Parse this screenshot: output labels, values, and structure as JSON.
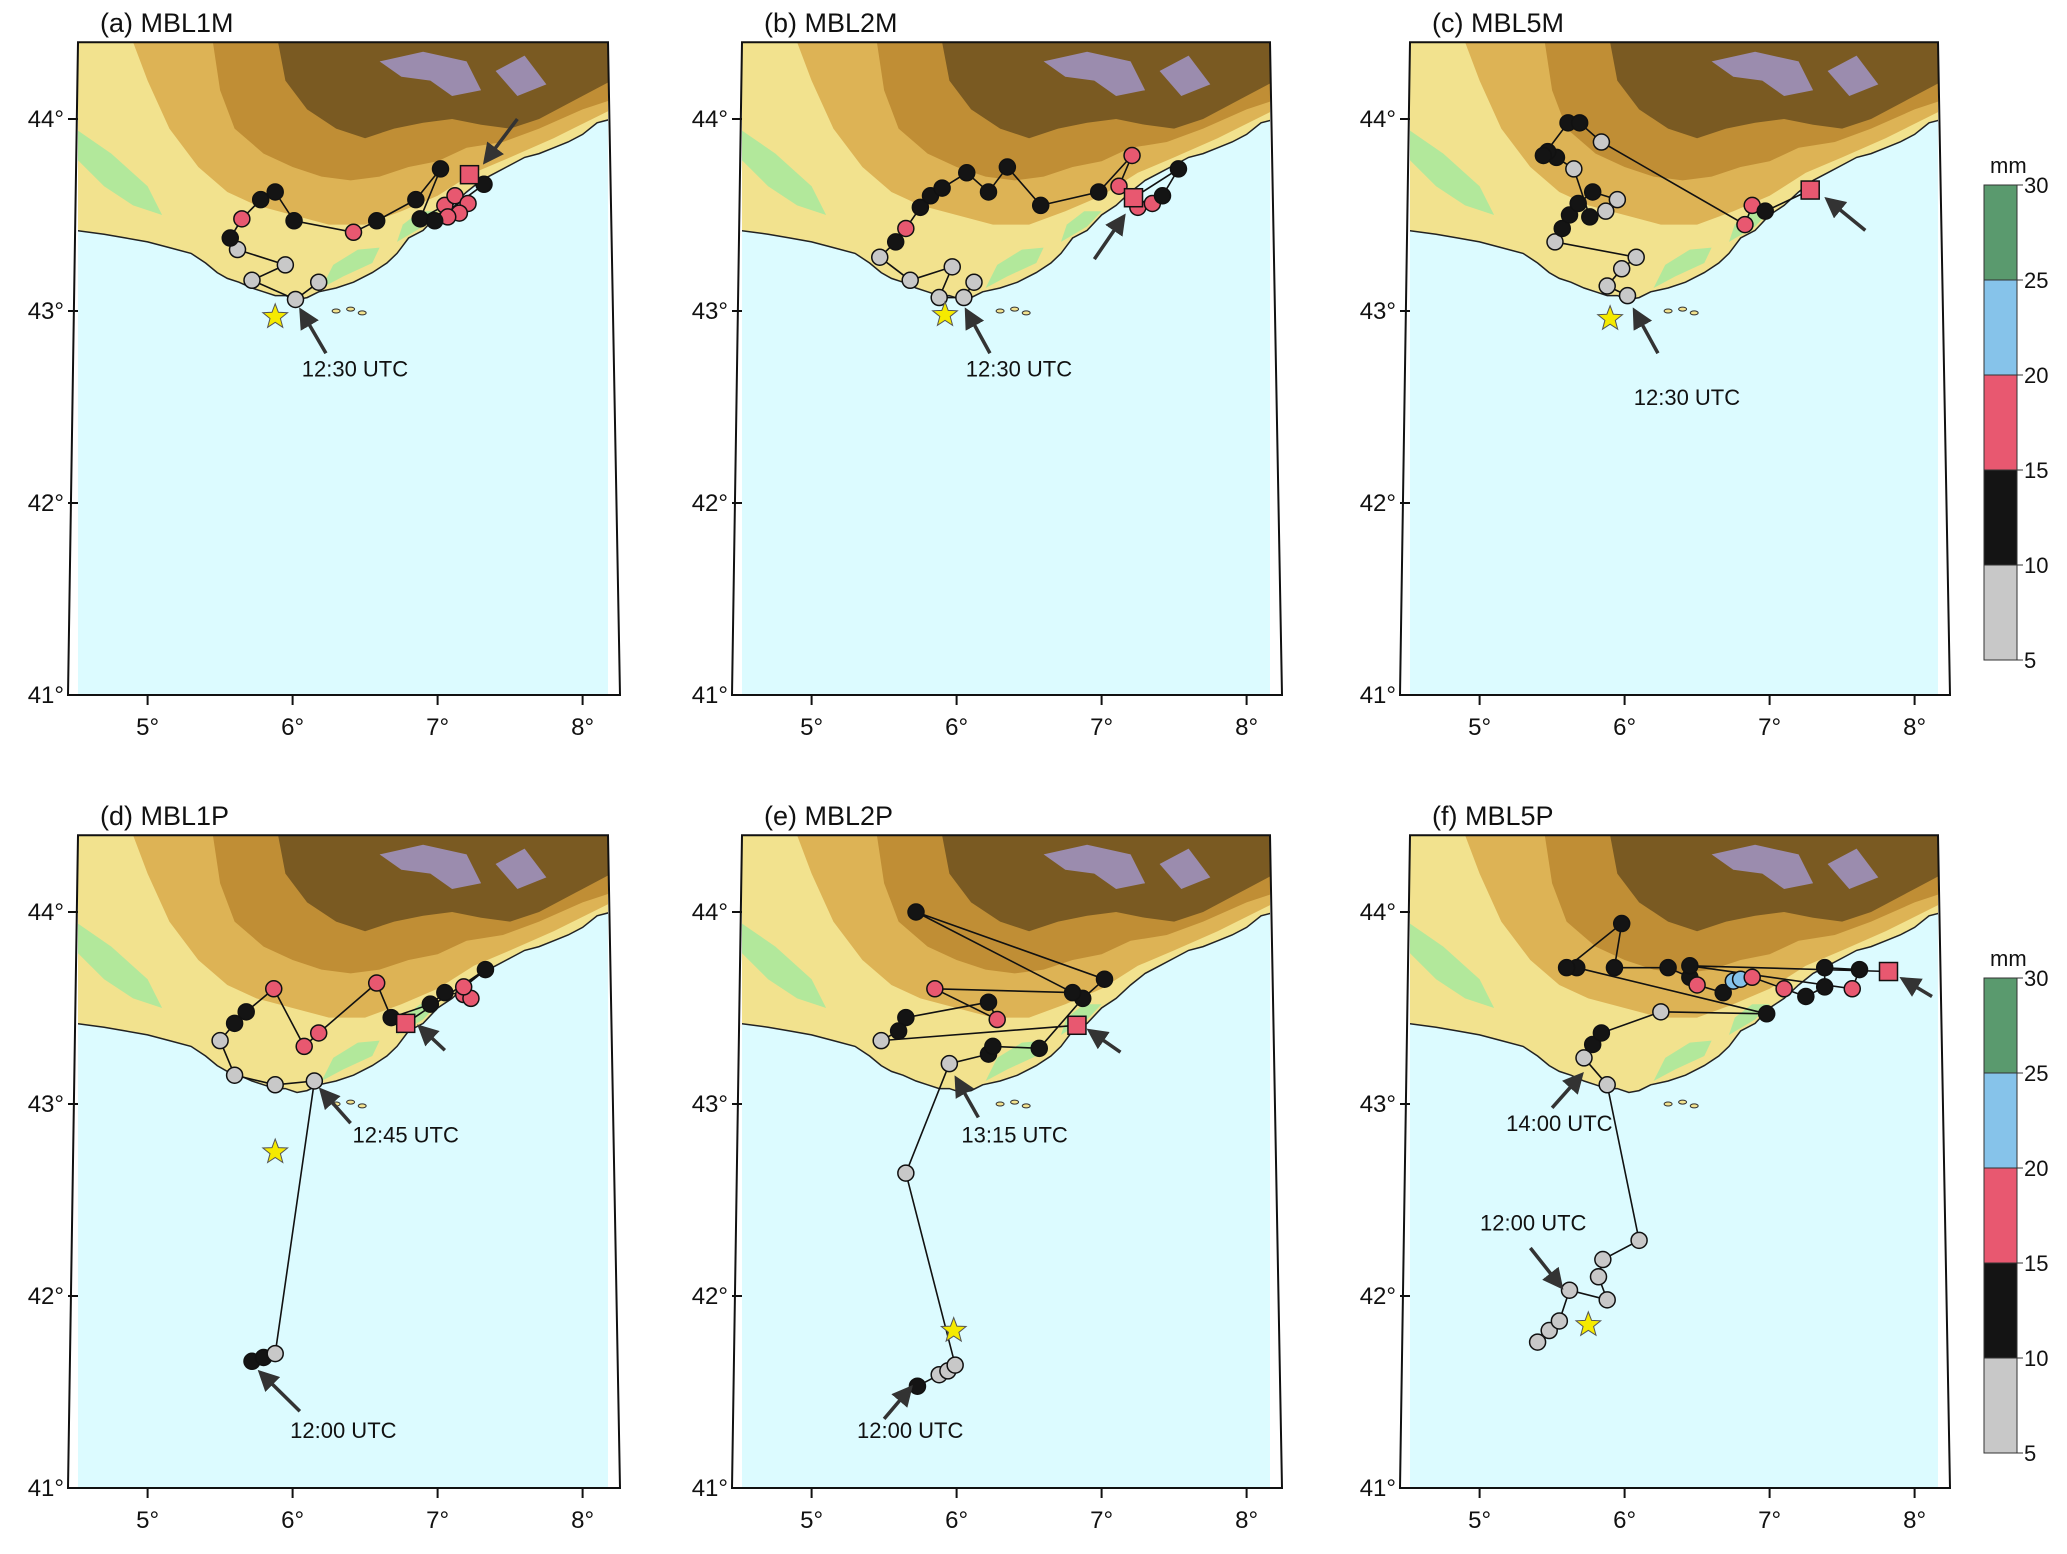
{
  "colors": {
    "sea": "#dcfbff",
    "lowland": "#b2e89b",
    "plain": "#f2e28e",
    "hills": "#ddb355",
    "highland": "#c08e35",
    "mountain": "#7a5a22",
    "summit": "#9b8cae",
    "bin_5_10": "#c8c8c8",
    "bin_10_15": "#141414",
    "bin_15_20": "#e85870",
    "bin_20_25": "#86c3ea",
    "bin_25_30": "#5a9a6e",
    "star": "#f5ea00"
  },
  "axes": {
    "lat_ticks": [
      "41°",
      "42°",
      "43°",
      "44°"
    ],
    "lon_ticks": [
      "5°",
      "6°",
      "7°",
      "8°"
    ],
    "lat_range": [
      41.0,
      44.4
    ],
    "lon_range": [
      4.5,
      8.2
    ]
  },
  "colorbar": {
    "unit": "mm",
    "tick_labels": [
      "5",
      "10",
      "15",
      "20",
      "25",
      "30"
    ]
  },
  "legend_symbols": {
    "bins_mm": [
      [
        5,
        10
      ],
      [
        10,
        15
      ],
      [
        15,
        20
      ],
      [
        20,
        25
      ],
      [
        25,
        30
      ]
    ],
    "marker_shapes": [
      "circle",
      "square",
      "star"
    ]
  },
  "panels": [
    {
      "title": "(a) MBL1M",
      "star": {
        "lon": 5.88,
        "lat": 42.97
      },
      "track": [
        {
          "lon": 6.18,
          "lat": 43.15,
          "mm": 7
        },
        {
          "lon": 6.02,
          "lat": 43.06,
          "mm": 7
        },
        {
          "lon": 5.72,
          "lat": 43.16,
          "mm": 7
        },
        {
          "lon": 5.95,
          "lat": 43.24,
          "mm": 7
        },
        {
          "lon": 5.62,
          "lat": 43.32,
          "mm": 7
        },
        {
          "lon": 5.57,
          "lat": 43.38,
          "mm": 12
        },
        {
          "lon": 5.65,
          "lat": 43.48,
          "mm": 17
        },
        {
          "lon": 5.78,
          "lat": 43.58,
          "mm": 12
        },
        {
          "lon": 5.88,
          "lat": 43.62,
          "mm": 12
        },
        {
          "lon": 6.01,
          "lat": 43.47,
          "mm": 12
        },
        {
          "lon": 6.42,
          "lat": 43.41,
          "mm": 17
        },
        {
          "lon": 6.58,
          "lat": 43.47,
          "mm": 12
        },
        {
          "lon": 6.85,
          "lat": 43.58,
          "mm": 12
        },
        {
          "lon": 7.02,
          "lat": 43.74,
          "mm": 12
        },
        {
          "lon": 6.88,
          "lat": 43.48,
          "mm": 12
        },
        {
          "lon": 7.05,
          "lat": 43.55,
          "mm": 17
        },
        {
          "lon": 7.12,
          "lat": 43.6,
          "mm": 17
        },
        {
          "lon": 7.21,
          "lat": 43.56,
          "mm": 17
        },
        {
          "lon": 7.15,
          "lat": 43.51,
          "mm": 17
        },
        {
          "lon": 7.07,
          "lat": 43.49,
          "mm": 17
        },
        {
          "lon": 6.98,
          "lat": 43.47,
          "mm": 12
        },
        {
          "lon": 7.32,
          "lat": 43.66,
          "mm": 12
        },
        {
          "lon": 7.22,
          "lat": 43.71,
          "mm": 17,
          "shape": "square"
        }
      ],
      "annotations": [
        {
          "text": "12:30 UTC",
          "label_lon": 6.43,
          "label_lat": 42.66,
          "from_lon": 6.23,
          "from_lat": 42.78,
          "to_lon": 6.06,
          "to_lat": 43.0
        },
        {
          "text": "",
          "from_lon": 7.55,
          "from_lat": 44.0,
          "to_lon": 7.33,
          "to_lat": 43.78
        }
      ]
    },
    {
      "title": "(b) MBL2M",
      "star": {
        "lon": 5.92,
        "lat": 42.98
      },
      "track": [
        {
          "lon": 6.12,
          "lat": 43.15,
          "mm": 7
        },
        {
          "lon": 6.05,
          "lat": 43.07,
          "mm": 7
        },
        {
          "lon": 5.88,
          "lat": 43.07,
          "mm": 7
        },
        {
          "lon": 5.97,
          "lat": 43.23,
          "mm": 7
        },
        {
          "lon": 5.68,
          "lat": 43.16,
          "mm": 7
        },
        {
          "lon": 5.47,
          "lat": 43.28,
          "mm": 7
        },
        {
          "lon": 5.58,
          "lat": 43.36,
          "mm": 12
        },
        {
          "lon": 5.65,
          "lat": 43.43,
          "mm": 17
        },
        {
          "lon": 5.75,
          "lat": 43.54,
          "mm": 12
        },
        {
          "lon": 5.82,
          "lat": 43.6,
          "mm": 12
        },
        {
          "lon": 5.9,
          "lat": 43.64,
          "mm": 12
        },
        {
          "lon": 6.07,
          "lat": 43.72,
          "mm": 12
        },
        {
          "lon": 6.22,
          "lat": 43.62,
          "mm": 12
        },
        {
          "lon": 6.35,
          "lat": 43.75,
          "mm": 12
        },
        {
          "lon": 6.58,
          "lat": 43.55,
          "mm": 12
        },
        {
          "lon": 6.98,
          "lat": 43.62,
          "mm": 12
        },
        {
          "lon": 7.21,
          "lat": 43.81,
          "mm": 17
        },
        {
          "lon": 7.12,
          "lat": 43.65,
          "mm": 17
        },
        {
          "lon": 7.25,
          "lat": 43.54,
          "mm": 17
        },
        {
          "lon": 7.35,
          "lat": 43.56,
          "mm": 17
        },
        {
          "lon": 7.42,
          "lat": 43.6,
          "mm": 12
        },
        {
          "lon": 7.53,
          "lat": 43.74,
          "mm": 12
        },
        {
          "lon": 7.22,
          "lat": 43.59,
          "mm": 17,
          "shape": "square"
        }
      ],
      "annotations": [
        {
          "text": "12:30 UTC",
          "label_lon": 6.43,
          "label_lat": 42.66,
          "from_lon": 6.23,
          "from_lat": 42.78,
          "to_lon": 6.07,
          "to_lat": 43.0
        },
        {
          "text": "",
          "from_lon": 6.95,
          "from_lat": 43.27,
          "to_lon": 7.15,
          "to_lat": 43.49
        }
      ]
    },
    {
      "title": "(c) MBL5M",
      "star": {
        "lon": 5.9,
        "lat": 42.96
      },
      "track": [
        {
          "lon": 6.02,
          "lat": 43.08,
          "mm": 7
        },
        {
          "lon": 5.88,
          "lat": 43.13,
          "mm": 7
        },
        {
          "lon": 5.98,
          "lat": 43.22,
          "mm": 7
        },
        {
          "lon": 6.08,
          "lat": 43.28,
          "mm": 7
        },
        {
          "lon": 5.52,
          "lat": 43.36,
          "mm": 7
        },
        {
          "lon": 5.57,
          "lat": 43.43,
          "mm": 12
        },
        {
          "lon": 5.62,
          "lat": 43.5,
          "mm": 12
        },
        {
          "lon": 5.68,
          "lat": 43.56,
          "mm": 12
        },
        {
          "lon": 5.78,
          "lat": 43.62,
          "mm": 12
        },
        {
          "lon": 5.95,
          "lat": 43.58,
          "mm": 7
        },
        {
          "lon": 5.87,
          "lat": 43.52,
          "mm": 7
        },
        {
          "lon": 5.76,
          "lat": 43.49,
          "mm": 12
        },
        {
          "lon": 5.65,
          "lat": 43.74,
          "mm": 7
        },
        {
          "lon": 5.53,
          "lat": 43.8,
          "mm": 12
        },
        {
          "lon": 5.47,
          "lat": 43.83,
          "mm": 12
        },
        {
          "lon": 5.44,
          "lat": 43.81,
          "mm": 12
        },
        {
          "lon": 5.61,
          "lat": 43.98,
          "mm": 12
        },
        {
          "lon": 5.69,
          "lat": 43.98,
          "mm": 12
        },
        {
          "lon": 5.84,
          "lat": 43.88,
          "mm": 7
        },
        {
          "lon": 6.83,
          "lat": 43.45,
          "mm": 17
        },
        {
          "lon": 6.88,
          "lat": 43.55,
          "mm": 17
        },
        {
          "lon": 6.97,
          "lat": 43.52,
          "mm": 12
        },
        {
          "lon": 7.28,
          "lat": 43.63,
          "mm": 17,
          "shape": "square"
        }
      ],
      "annotations": [
        {
          "text": "12:30 UTC",
          "label_lon": 6.43,
          "label_lat": 42.51,
          "from_lon": 6.23,
          "from_lat": 42.78,
          "to_lon": 6.07,
          "to_lat": 43.0
        },
        {
          "text": "",
          "from_lon": 7.66,
          "from_lat": 43.42,
          "to_lon": 7.4,
          "to_lat": 43.58
        }
      ]
    },
    {
      "title": "(d) MBL1P",
      "star": {
        "lon": 5.88,
        "lat": 42.75
      },
      "track": [
        {
          "lon": 5.72,
          "lat": 41.66,
          "mm": 12
        },
        {
          "lon": 5.8,
          "lat": 41.68,
          "mm": 12
        },
        {
          "lon": 5.88,
          "lat": 41.7,
          "mm": 7
        },
        {
          "lon": 6.15,
          "lat": 43.12,
          "mm": 7
        },
        {
          "lon": 5.88,
          "lat": 43.1,
          "mm": 7
        },
        {
          "lon": 5.6,
          "lat": 43.15,
          "mm": 7
        },
        {
          "lon": 5.5,
          "lat": 43.33,
          "mm": 7
        },
        {
          "lon": 5.6,
          "lat": 43.42,
          "mm": 12
        },
        {
          "lon": 5.68,
          "lat": 43.48,
          "mm": 12
        },
        {
          "lon": 5.87,
          "lat": 43.6,
          "mm": 17
        },
        {
          "lon": 6.08,
          "lat": 43.3,
          "mm": 17
        },
        {
          "lon": 6.18,
          "lat": 43.37,
          "mm": 17
        },
        {
          "lon": 6.58,
          "lat": 43.63,
          "mm": 17
        },
        {
          "lon": 6.68,
          "lat": 43.45,
          "mm": 12
        },
        {
          "lon": 6.95,
          "lat": 43.52,
          "mm": 12
        },
        {
          "lon": 7.05,
          "lat": 43.58,
          "mm": 12
        },
        {
          "lon": 7.18,
          "lat": 43.57,
          "mm": 17
        },
        {
          "lon": 7.23,
          "lat": 43.55,
          "mm": 17
        },
        {
          "lon": 7.18,
          "lat": 43.61,
          "mm": 17
        },
        {
          "lon": 7.33,
          "lat": 43.7,
          "mm": 12
        },
        {
          "lon": 6.78,
          "lat": 43.42,
          "mm": 17,
          "shape": "square"
        }
      ],
      "annotations": [
        {
          "text": "12:45 UTC",
          "label_lon": 6.78,
          "label_lat": 42.8,
          "from_lon": 6.4,
          "from_lat": 42.9,
          "to_lon": 6.2,
          "to_lat": 43.07
        },
        {
          "text": "12:00 UTC",
          "label_lon": 6.35,
          "label_lat": 41.26,
          "from_lon": 6.05,
          "from_lat": 41.4,
          "to_lon": 5.78,
          "to_lat": 41.6
        },
        {
          "text": "",
          "from_lon": 7.05,
          "from_lat": 43.28,
          "to_lon": 6.88,
          "to_lat": 43.4
        }
      ]
    },
    {
      "title": "(e) MBL2P",
      "star": {
        "lon": 5.98,
        "lat": 41.82
      },
      "track": [
        {
          "lon": 5.73,
          "lat": 41.53,
          "mm": 12
        },
        {
          "lon": 5.88,
          "lat": 41.59,
          "mm": 7
        },
        {
          "lon": 5.94,
          "lat": 41.61,
          "mm": 7
        },
        {
          "lon": 5.99,
          "lat": 41.64,
          "mm": 7
        },
        {
          "lon": 5.65,
          "lat": 42.64,
          "mm": 7
        },
        {
          "lon": 5.95,
          "lat": 43.21,
          "mm": 7
        },
        {
          "lon": 6.22,
          "lat": 43.26,
          "mm": 12
        },
        {
          "lon": 6.25,
          "lat": 43.3,
          "mm": 12
        },
        {
          "lon": 6.57,
          "lat": 43.29,
          "mm": 12
        },
        {
          "lon": 6.87,
          "lat": 43.55,
          "mm": 12
        },
        {
          "lon": 7.02,
          "lat": 43.65,
          "mm": 12
        },
        {
          "lon": 5.72,
          "lat": 44.0,
          "mm": 12
        },
        {
          "lon": 6.8,
          "lat": 43.58,
          "mm": 12
        },
        {
          "lon": 5.85,
          "lat": 43.6,
          "mm": 17
        },
        {
          "lon": 6.28,
          "lat": 43.44,
          "mm": 17
        },
        {
          "lon": 6.22,
          "lat": 43.53,
          "mm": 12
        },
        {
          "lon": 5.65,
          "lat": 43.45,
          "mm": 12
        },
        {
          "lon": 5.6,
          "lat": 43.38,
          "mm": 12
        },
        {
          "lon": 5.48,
          "lat": 43.33,
          "mm": 7
        },
        {
          "lon": 6.83,
          "lat": 43.41,
          "mm": 17,
          "shape": "square"
        }
      ],
      "annotations": [
        {
          "text": "13:15 UTC",
          "label_lon": 6.4,
          "label_lat": 42.8,
          "from_lon": 6.15,
          "from_lat": 42.93,
          "to_lon": 6.0,
          "to_lat": 43.13
        },
        {
          "text": "12:00 UTC",
          "label_lon": 5.68,
          "label_lat": 41.26,
          "from_lon": 5.5,
          "from_lat": 41.36,
          "to_lon": 5.68,
          "to_lat": 41.52
        },
        {
          "text": "",
          "from_lon": 7.13,
          "from_lat": 43.27,
          "to_lon": 6.92,
          "to_lat": 43.38
        }
      ]
    },
    {
      "title": "(f) MBL5P",
      "star": {
        "lon": 5.75,
        "lat": 41.85
      },
      "track": [
        {
          "lon": 5.4,
          "lat": 41.76,
          "mm": 7
        },
        {
          "lon": 5.48,
          "lat": 41.82,
          "mm": 7
        },
        {
          "lon": 5.55,
          "lat": 41.87,
          "mm": 7
        },
        {
          "lon": 5.62,
          "lat": 42.03,
          "mm": 7
        },
        {
          "lon": 5.88,
          "lat": 41.98,
          "mm": 7
        },
        {
          "lon": 5.82,
          "lat": 42.1,
          "mm": 7
        },
        {
          "lon": 5.85,
          "lat": 42.19,
          "mm": 7
        },
        {
          "lon": 6.1,
          "lat": 42.29,
          "mm": 7
        },
        {
          "lon": 5.88,
          "lat": 43.1,
          "mm": 7
        },
        {
          "lon": 5.72,
          "lat": 43.24,
          "mm": 7
        },
        {
          "lon": 5.78,
          "lat": 43.31,
          "mm": 12
        },
        {
          "lon": 5.84,
          "lat": 43.37,
          "mm": 12
        },
        {
          "lon": 6.25,
          "lat": 43.48,
          "mm": 7
        },
        {
          "lon": 6.98,
          "lat": 43.47,
          "mm": 12
        },
        {
          "lon": 5.67,
          "lat": 43.71,
          "mm": 12
        },
        {
          "lon": 5.6,
          "lat": 43.71,
          "mm": 12
        },
        {
          "lon": 5.98,
          "lat": 43.94,
          "mm": 12
        },
        {
          "lon": 5.93,
          "lat": 43.71,
          "mm": 12
        },
        {
          "lon": 6.3,
          "lat": 43.71,
          "mm": 12
        },
        {
          "lon": 6.45,
          "lat": 43.66,
          "mm": 12
        },
        {
          "lon": 6.5,
          "lat": 43.62,
          "mm": 17
        },
        {
          "lon": 6.68,
          "lat": 43.58,
          "mm": 12
        },
        {
          "lon": 6.75,
          "lat": 43.64,
          "mm": 22
        },
        {
          "lon": 6.8,
          "lat": 43.65,
          "mm": 22
        },
        {
          "lon": 6.88,
          "lat": 43.66,
          "mm": 17
        },
        {
          "lon": 7.1,
          "lat": 43.6,
          "mm": 17
        },
        {
          "lon": 7.25,
          "lat": 43.56,
          "mm": 12
        },
        {
          "lon": 7.38,
          "lat": 43.61,
          "mm": 12
        },
        {
          "lon": 7.38,
          "lat": 43.71,
          "mm": 12
        },
        {
          "lon": 7.62,
          "lat": 43.7,
          "mm": 12
        },
        {
          "lon": 7.57,
          "lat": 43.6,
          "mm": 17
        },
        {
          "lon": 6.45,
          "lat": 43.72,
          "mm": 12
        },
        {
          "lon": 7.82,
          "lat": 43.69,
          "mm": 17,
          "shape": "square"
        }
      ],
      "annotations": [
        {
          "text": "14:00 UTC",
          "label_lon": 5.55,
          "label_lat": 42.86,
          "from_lon": 5.5,
          "from_lat": 42.98,
          "to_lon": 5.7,
          "to_lat": 43.15
        },
        {
          "text": "12:00 UTC",
          "label_lon": 5.37,
          "label_lat": 42.34,
          "from_lon": 5.35,
          "from_lat": 42.25,
          "to_lon": 5.56,
          "to_lat": 42.05
        },
        {
          "text": "",
          "from_lon": 8.12,
          "from_lat": 43.56,
          "to_lon": 7.92,
          "to_lat": 43.65
        }
      ]
    }
  ]
}
